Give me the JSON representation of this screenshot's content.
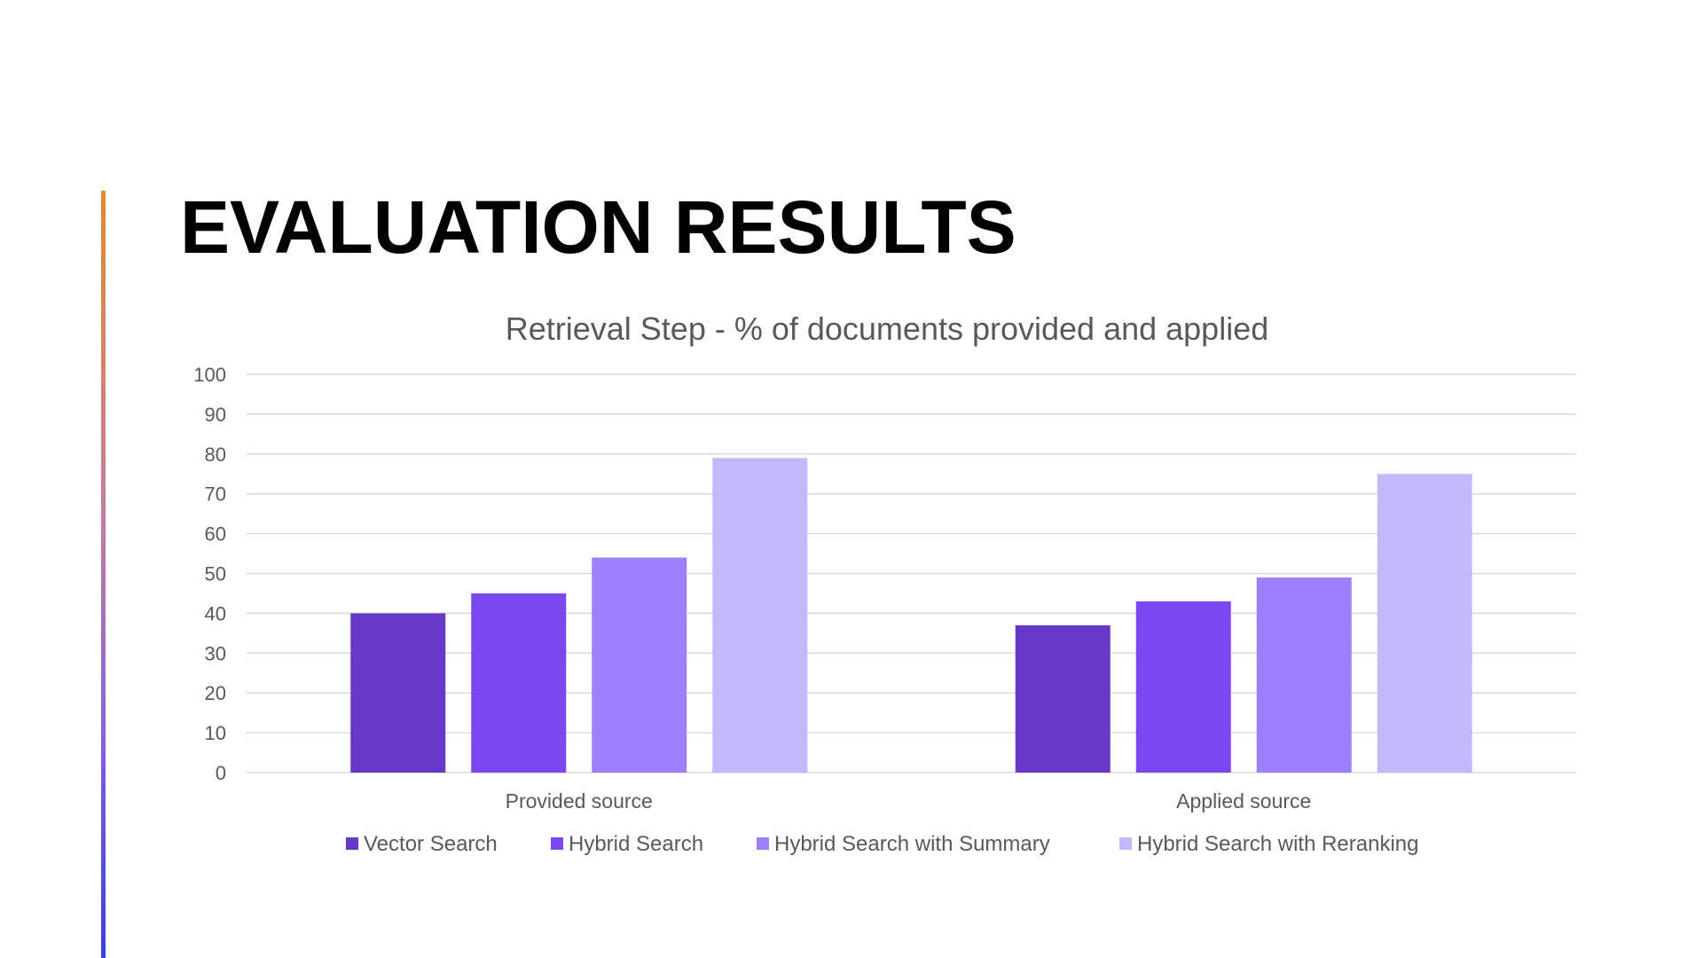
{
  "slide": {
    "title": "EVALUATION RESULTS"
  },
  "chart_data": {
    "type": "bar",
    "title": "Retrieval Step - % of documents provided and applied",
    "categories": [
      "Provided source",
      "Applied source"
    ],
    "series": [
      {
        "name": "Vector Search",
        "color": "#6639c9",
        "values": [
          40,
          37
        ]
      },
      {
        "name": "Hybrid Search",
        "color": "#7a48ee",
        "values": [
          45,
          43
        ]
      },
      {
        "name": "Hybrid Search with Summary",
        "color": "#9c80fc",
        "values": [
          54,
          49
        ]
      },
      {
        "name": "Hybrid Search with Reranking",
        "color": "#c4b8fd",
        "values": [
          79,
          75
        ]
      }
    ],
    "ylim": [
      0,
      100
    ],
    "yticks": [
      0,
      10,
      20,
      30,
      40,
      50,
      60,
      70,
      80,
      90,
      100
    ],
    "grid": true,
    "legend_position": "bottom"
  }
}
